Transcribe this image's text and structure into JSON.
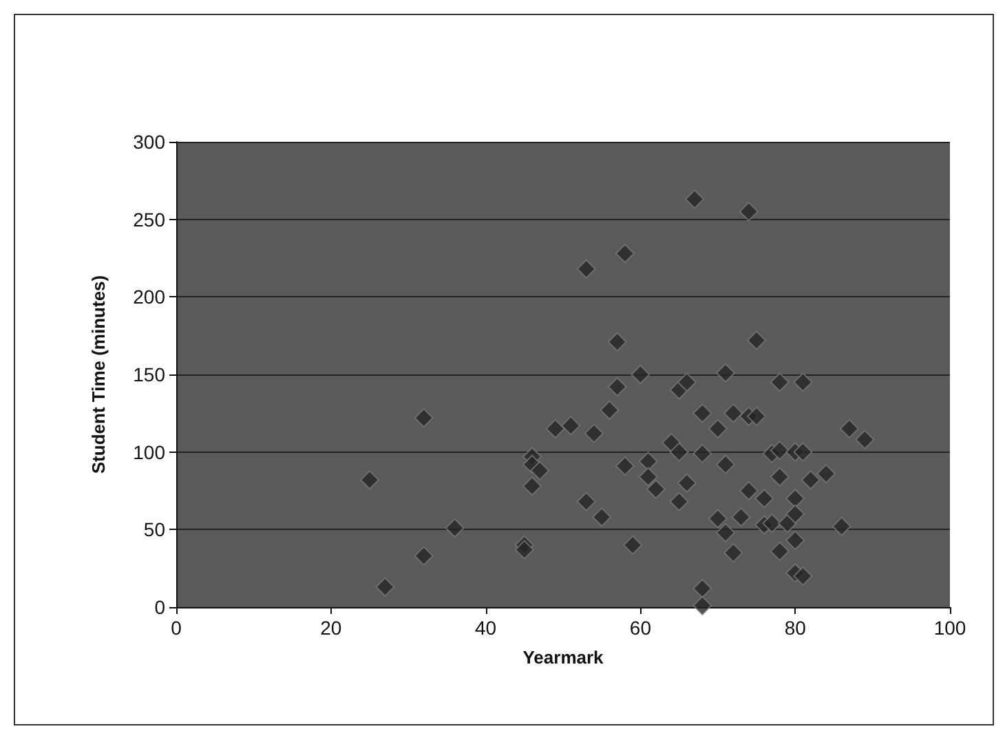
{
  "chart_data": {
    "type": "scatter",
    "xlabel": "Yearmark",
    "ylabel": "Student Time (minutes)",
    "x": [
      25,
      27,
      32,
      32,
      36,
      45,
      45,
      46,
      46,
      47,
      46,
      49,
      51,
      53,
      53,
      54,
      55,
      56,
      57,
      57,
      58,
      58,
      59,
      60,
      61,
      61,
      62,
      64,
      65,
      65,
      65,
      66,
      66,
      67,
      68,
      68,
      68,
      68,
      70,
      71,
      71,
      70,
      71,
      72,
      72,
      73,
      74,
      74,
      74,
      75,
      75,
      76,
      76,
      77,
      77,
      78,
      78,
      78,
      79,
      78,
      80,
      80,
      80,
      80,
      80,
      81,
      81,
      81,
      82,
      84,
      86,
      87,
      89
    ],
    "values": [
      82,
      13,
      122,
      33,
      51,
      40,
      37,
      97,
      92,
      88,
      78,
      115,
      117,
      218,
      68,
      112,
      58,
      127,
      142,
      171,
      228,
      91,
      40,
      150,
      94,
      84,
      76,
      106,
      100,
      68,
      140,
      145,
      80,
      263,
      99,
      125,
      12,
      1,
      115,
      151,
      92,
      57,
      48,
      35,
      125,
      58,
      123,
      75,
      255,
      123,
      172,
      70,
      53,
      99,
      54,
      145,
      84,
      36,
      54,
      101,
      100,
      70,
      60,
      43,
      22,
      20,
      145,
      100,
      82,
      86,
      52,
      115,
      108
    ],
    "color": "#262626",
    "marker": "diamond",
    "xlim": [
      0,
      100
    ],
    "xticks": [
      0,
      20,
      40,
      60,
      80,
      100
    ],
    "ylim": [
      0,
      300
    ],
    "yticks": [
      0,
      50,
      100,
      150,
      200,
      250,
      300
    ],
    "grid": "y"
  }
}
